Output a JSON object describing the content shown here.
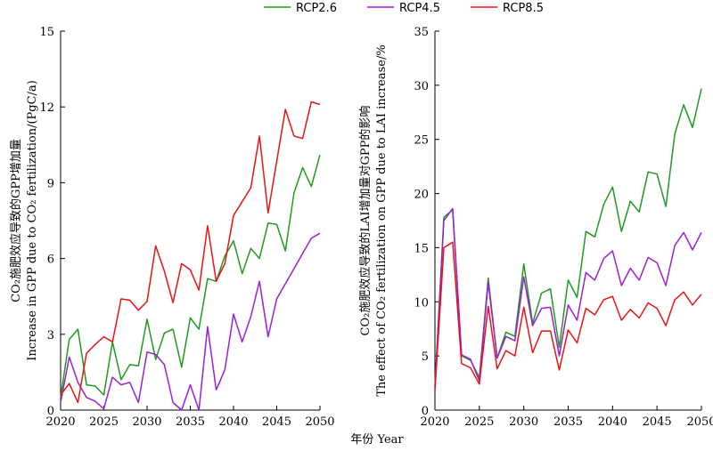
{
  "legend": [
    {
      "name": "RCP2.6",
      "color": "#1f9a1f"
    },
    {
      "name": "RCP4.5",
      "color": "#9b1fd6"
    },
    {
      "name": "RCP8.5",
      "color": "#e81414"
    }
  ],
  "xlabel": "年份 Year",
  "chart_data": [
    {
      "type": "line",
      "ylabel_cn": "CO₂施肥效应导致的GPP增加量",
      "ylabel_en": "Increase in GPP due to CO₂ fertilization/(PgC/a)",
      "x": [
        2020,
        2021,
        2022,
        2023,
        2024,
        2025,
        2026,
        2027,
        2028,
        2029,
        2030,
        2031,
        2032,
        2033,
        2034,
        2035,
        2036,
        2037,
        2038,
        2039,
        2040,
        2041,
        2042,
        2043,
        2044,
        2045,
        2046,
        2047,
        2048,
        2049,
        2050
      ],
      "xlim": [
        2020,
        2050
      ],
      "xticks": [
        2020,
        2025,
        2030,
        2035,
        2040,
        2045,
        2050
      ],
      "ylim": [
        0,
        15
      ],
      "yticks": [
        0,
        3,
        6,
        9,
        12,
        15
      ],
      "series": [
        {
          "name": "RCP2.6",
          "color": "#1f9a1f",
          "values": [
            0.5,
            2.8,
            3.2,
            1.0,
            0.95,
            0.6,
            2.7,
            1.2,
            1.8,
            1.75,
            3.6,
            2.0,
            3.05,
            3.2,
            1.7,
            3.65,
            3.2,
            5.2,
            5.1,
            6.1,
            6.7,
            5.4,
            6.4,
            6.0,
            7.4,
            7.35,
            6.3,
            8.6,
            9.6,
            8.85,
            10.1
          ]
        },
        {
          "name": "RCP4.5",
          "color": "#9b1fd6",
          "values": [
            0.3,
            2.1,
            1.1,
            0.5,
            0.35,
            0.05,
            1.3,
            1.0,
            1.1,
            0.3,
            2.3,
            2.2,
            1.8,
            0.3,
            0.0,
            1.0,
            0.0,
            3.3,
            0.8,
            1.6,
            3.8,
            2.7,
            3.7,
            5.1,
            2.9,
            4.4,
            5.0,
            5.6,
            6.2,
            6.8,
            7.0
          ]
        },
        {
          "name": "RCP8.5",
          "color": "#e81414",
          "values": [
            0.6,
            1.05,
            0.3,
            2.25,
            2.6,
            2.9,
            2.7,
            4.4,
            4.35,
            3.95,
            4.3,
            6.5,
            5.5,
            4.25,
            5.8,
            5.55,
            4.75,
            7.3,
            5.1,
            5.8,
            7.7,
            8.25,
            8.8,
            10.85,
            7.8,
            9.85,
            11.9,
            10.85,
            10.75,
            12.2,
            12.1
          ]
        }
      ]
    },
    {
      "type": "line",
      "ylabel_cn": "CO₂施肥效应导致的LAI增加量对GPP的影响",
      "ylabel_en": "The effect of CO₂ fertilization on GPP due to LAI increase/%",
      "x": [
        2020,
        2021,
        2022,
        2023,
        2024,
        2025,
        2026,
        2027,
        2028,
        2029,
        2030,
        2031,
        2032,
        2033,
        2034,
        2035,
        2036,
        2037,
        2038,
        2039,
        2040,
        2041,
        2042,
        2043,
        2044,
        2045,
        2046,
        2047,
        2048,
        2049,
        2050
      ],
      "xlim": [
        2020,
        2050
      ],
      "xticks": [
        2020,
        2025,
        2030,
        2035,
        2040,
        2045,
        2050
      ],
      "ylim": [
        0,
        35
      ],
      "yticks": [
        0,
        5,
        10,
        15,
        20,
        25,
        30,
        35
      ],
      "series": [
        {
          "name": "RCP2.6",
          "color": "#1f9a1f",
          "values": [
            2.2,
            17.8,
            18.5,
            5.0,
            4.6,
            3.0,
            12.2,
            4.8,
            7.2,
            6.8,
            13.5,
            8.0,
            10.8,
            11.2,
            5.8,
            12.0,
            10.4,
            16.5,
            16.0,
            19.0,
            20.6,
            16.5,
            19.3,
            18.3,
            22.0,
            21.8,
            18.8,
            25.5,
            28.2,
            26.1,
            29.7
          ]
        },
        {
          "name": "RCP4.5",
          "color": "#9b1fd6",
          "values": [
            2.0,
            17.5,
            18.6,
            5.1,
            4.7,
            2.7,
            11.8,
            4.8,
            6.8,
            6.4,
            12.3,
            7.8,
            9.4,
            9.5,
            5.0,
            9.7,
            8.3,
            12.7,
            12.0,
            14.0,
            14.7,
            11.5,
            13.1,
            12.0,
            14.1,
            13.6,
            11.5,
            15.2,
            16.4,
            14.8,
            16.4
          ]
        },
        {
          "name": "RCP8.5",
          "color": "#e81414",
          "values": [
            1.8,
            15.0,
            15.5,
            4.3,
            3.9,
            2.4,
            9.6,
            3.8,
            5.5,
            5.0,
            9.5,
            5.3,
            7.3,
            7.3,
            3.7,
            7.4,
            6.2,
            9.4,
            8.8,
            10.2,
            10.5,
            8.3,
            9.3,
            8.5,
            9.9,
            9.4,
            7.8,
            10.2,
            10.9,
            9.7,
            10.7
          ]
        }
      ]
    }
  ]
}
